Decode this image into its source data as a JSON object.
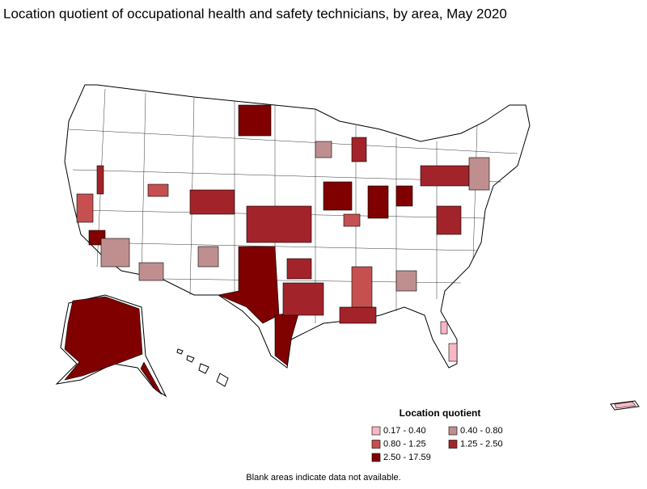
{
  "title": "Location quotient of occupational health and safety technicians, by area, May 2020",
  "legend": {
    "title": "Location quotient",
    "items": [
      {
        "label": "0.17 - 0.40",
        "color": "#f7b7c3"
      },
      {
        "label": "0.40 - 0.80",
        "color": "#bf8f8f"
      },
      {
        "label": "0.80 - 1.25",
        "color": "#c65050"
      },
      {
        "label": "1.25 - 2.50",
        "color": "#a3232a"
      },
      {
        "label": "2.50 - 17.59",
        "color": "#800000"
      }
    ]
  },
  "footnote": "Blank areas indicate data not available."
}
